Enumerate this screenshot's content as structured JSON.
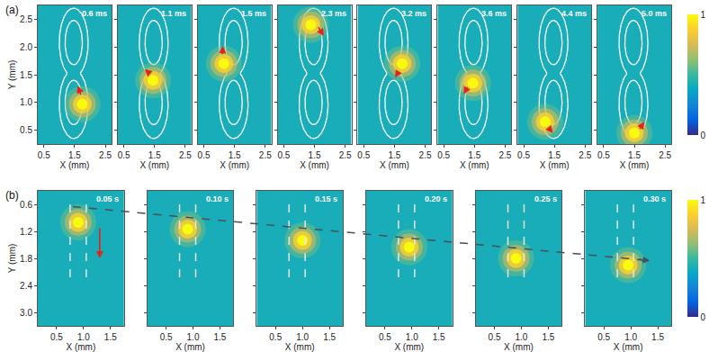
{
  "chart_data": [
    {
      "type": "heatmap",
      "label": "(a)",
      "xlabel": "X (mm)",
      "ylabel": "Y (mm)",
      "xlim": [
        0.3,
        2.7
      ],
      "ylim": [
        0.25,
        2.75
      ],
      "xticks": [
        0.5,
        1.5,
        2.5
      ],
      "yticks": [
        0.5,
        {
          "value": 1,
          "label": "1.0"
        },
        1.5,
        {
          "value": 2,
          "label": "2.0"
        },
        2.5
      ],
      "colorbar": {
        "range": [
          0,
          1
        ],
        "ticks": [
          0,
          1
        ]
      },
      "background": 0.42,
      "spot_value": 1,
      "track": {
        "outer": [
          {
            "cx": 1.47,
            "cy": 0.97,
            "rx": 0.47,
            "ry": 0.62
          },
          {
            "cx": 1.47,
            "cy": 2.08,
            "rx": 0.47,
            "ry": 0.62
          }
        ],
        "inner": [
          {
            "cx": 1.47,
            "cy": 1.0,
            "rx": 0.28,
            "ry": 0.4
          },
          {
            "cx": 1.47,
            "cy": 2.08,
            "rx": 0.28,
            "ry": 0.4
          }
        ]
      },
      "panels": [
        {
          "time": "0.6 ms",
          "spot": [
            1.75,
            0.97
          ],
          "arrow": {
            "from": [
              1.72,
              1.12
            ],
            "to": [
              1.6,
              1.3
            ]
          }
        },
        {
          "time": "1.1 ms",
          "spot": [
            1.45,
            1.4
          ],
          "arrow": {
            "from": [
              1.38,
              1.5
            ],
            "to": [
              1.18,
              1.6
            ]
          }
        },
        {
          "time": "1.5 ms",
          "spot": [
            1.15,
            1.7
          ],
          "arrow": {
            "from": [
              1.1,
              1.85
            ],
            "to": [
              1.12,
              2.02
            ]
          }
        },
        {
          "time": "2.3 ms",
          "spot": [
            1.38,
            2.4
          ],
          "arrow": {
            "from": [
              1.6,
              2.38
            ],
            "to": [
              1.8,
              2.2
            ]
          }
        },
        {
          "time": "3.2 ms",
          "spot": [
            1.75,
            1.7
          ],
          "arrow": {
            "from": [
              1.66,
              1.58
            ],
            "to": [
              1.52,
              1.45
            ]
          }
        },
        {
          "time": "3.6 ms",
          "spot": [
            1.45,
            1.35
          ],
          "arrow": {
            "from": [
              1.3,
              1.3
            ],
            "to": [
              1.15,
              1.15
            ]
          }
        },
        {
          "time": "4.4 ms",
          "spot": [
            1.2,
            0.65
          ],
          "arrow": {
            "from": [
              1.3,
              0.55
            ],
            "to": [
              1.45,
              0.45
            ]
          }
        },
        {
          "time": "5.0 ms",
          "spot": [
            1.5,
            0.45
          ],
          "arrow": {
            "from": [
              1.65,
              0.5
            ],
            "to": [
              1.82,
              0.65
            ]
          }
        }
      ]
    },
    {
      "type": "heatmap",
      "label": "(b)",
      "xlabel": "X (mm)",
      "ylabel": "Y (mm)",
      "xlim": [
        0.15,
        1.75
      ],
      "ylim": [
        3.3,
        0.3
      ],
      "xticks": [
        0.5,
        {
          "value": 1,
          "label": "1.0"
        },
        1.5
      ],
      "yticks": [
        0.6,
        1.2,
        1.8,
        2.4,
        {
          "value": 3,
          "label": "3.0"
        }
      ],
      "colorbar": {
        "range": [
          0,
          1
        ],
        "ticks": [
          0,
          1
        ]
      },
      "background": 0.42,
      "spot_value": 1,
      "channel": {
        "x": [
          0.75,
          1.05
        ],
        "y": [
          0.6,
          2.4
        ]
      },
      "panels": [
        {
          "time": "0.05 s",
          "spot": [
            0.9,
            1.0
          ],
          "arrow": {
            "from": [
              1.3,
              1.1
            ],
            "to": [
              1.3,
              1.8
            ]
          }
        },
        {
          "time": "0.10 s",
          "spot": [
            0.9,
            1.15
          ]
        },
        {
          "time": "0.15 s",
          "spot": [
            1.0,
            1.4
          ]
        },
        {
          "time": "0.20 s",
          "spot": [
            0.95,
            1.55
          ]
        },
        {
          "time": "0.25 s",
          "spot": [
            0.9,
            1.8
          ]
        },
        {
          "time": "0.30 s",
          "spot": [
            0.95,
            1.95
          ]
        }
      ],
      "trend_arrow": {
        "from": {
          "panel": 0,
          "x": 0.8,
          "y": 0.65
        },
        "to": {
          "panel": 5,
          "x": 1.35,
          "y": 1.85
        }
      }
    }
  ]
}
